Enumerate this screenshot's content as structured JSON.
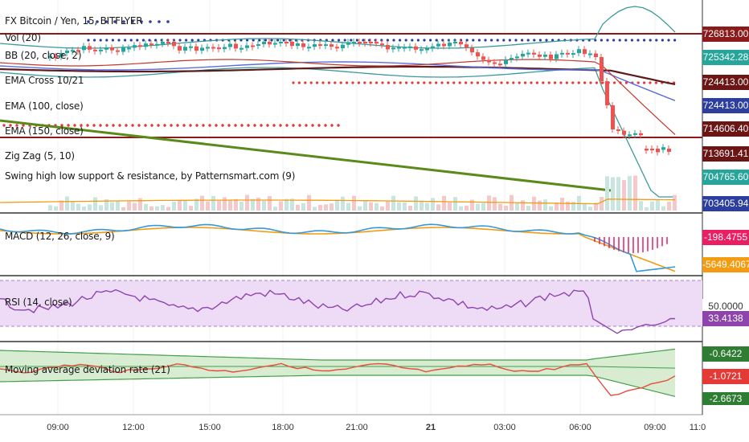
{
  "colors": {
    "candle_up": "#26a69a",
    "candle_down": "#ef5350",
    "support_resistance": "#8b1a1a",
    "zigzag": "#5a8a1a",
    "bb": "#3a9a9a",
    "ema_fast": "#5b6ee1",
    "ema_slow": "#c0392b",
    "macd_signal": "#f39c12",
    "macd_line": "#3498db",
    "rsi_line": "#8e44ad",
    "rsi_band": "#eedcf7",
    "dev_band": "#d7ecd0",
    "dev_line": "#e74c3c",
    "dev_mid": "#43a047",
    "dots_blue": "#2c3e9e",
    "dots_red": "#e53935"
  },
  "main_pane": {
    "legend": [
      "FX Bitcoin / Yen, 15, BITFLYER",
      "Vol (20)",
      "BB (20, close, 2)",
      "EMA Cross 10/21",
      "EMA (100, close)",
      "EMA (150, close)",
      "Zig Zag (5, 10)",
      "Swing high low support & resistance, by Patternsmart.com (9)"
    ],
    "price_labels": [
      {
        "value": "726813.00",
        "bg": "#8b1a1a"
      },
      {
        "value": "725342.28",
        "bg": "#26a69a"
      },
      {
        "value": "724413.00",
        "bg": "#6b1515"
      },
      {
        "value": "724413.00",
        "bg": "#2c3e9e"
      },
      {
        "value": "714606.40",
        "bg": "#6b1515"
      },
      {
        "value": "713691.41",
        "bg": "#6b1515"
      },
      {
        "value": "704765.60",
        "bg": "#26a69a"
      },
      {
        "value": "703405.94",
        "bg": "#2c3e9e"
      }
    ]
  },
  "macd_pane": {
    "legend": "MACD (12, 26, close, 9)",
    "labels": [
      {
        "value": "-198.4755",
        "bg": "#e91e63"
      },
      {
        "value": "-5649.4067",
        "bg": "#f39c12"
      }
    ]
  },
  "rsi_pane": {
    "legend": "RSI (14, close)",
    "labels": [
      {
        "value": "50.0000",
        "bg": "#ffffff",
        "fg": "#333333"
      },
      {
        "value": "33.4138",
        "bg": "#8e44ad"
      }
    ]
  },
  "dev_pane": {
    "legend": "Moving average deviation rate (21)",
    "labels": [
      {
        "value": "-0.6422",
        "bg": "#2e7d32"
      },
      {
        "value": "-1.0721",
        "bg": "#e53935"
      },
      {
        "value": "-2.6673",
        "bg": "#2e7d32"
      }
    ]
  },
  "time_axis": [
    "09:00",
    "12:00",
    "15:00",
    "18:00",
    "21:00",
    "21",
    "03:00",
    "06:00",
    "09:00",
    "11:0"
  ]
}
